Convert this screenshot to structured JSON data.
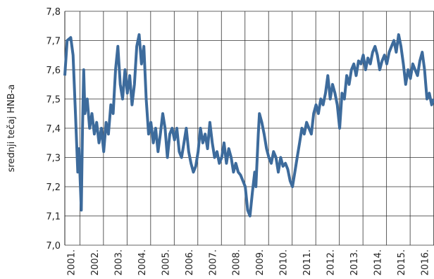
{
  "chart_data": {
    "type": "line",
    "y_label": "srednji tečaj HNB-a",
    "xlim": [
      2000.75,
      2016.4
    ],
    "xticks": [
      {
        "value": 2001,
        "label": "2001."
      },
      {
        "value": 2002,
        "label": "2002."
      },
      {
        "value": 2003,
        "label": "2003."
      },
      {
        "value": 2004,
        "label": "2004."
      },
      {
        "value": 2005,
        "label": "2005."
      },
      {
        "value": 2006,
        "label": "2006."
      },
      {
        "value": 2007,
        "label": "2007."
      },
      {
        "value": 2008,
        "label": "2008."
      },
      {
        "value": 2009,
        "label": "2009."
      },
      {
        "value": 2010,
        "label": "2010."
      },
      {
        "value": 2011,
        "label": "2011."
      },
      {
        "value": 2012,
        "label": "2012."
      },
      {
        "value": 2013,
        "label": "2013."
      },
      {
        "value": 2014,
        "label": "2014."
      },
      {
        "value": 2015,
        "label": "2015."
      },
      {
        "value": 2016,
        "label": "2016."
      }
    ],
    "ylim": [
      7.0,
      7.8
    ],
    "yticks": [
      {
        "value": 7.0,
        "label": "7,0"
      },
      {
        "value": 7.1,
        "label": "7,1"
      },
      {
        "value": 7.2,
        "label": "7,2"
      },
      {
        "value": 7.3,
        "label": "7,3"
      },
      {
        "value": 7.4,
        "label": "7,4"
      },
      {
        "value": 7.5,
        "label": "7,5"
      },
      {
        "value": 7.6,
        "label": "7,6"
      },
      {
        "value": 7.7,
        "label": "7,7"
      },
      {
        "value": 7.8,
        "label": "7,8"
      }
    ],
    "grid": true,
    "color": "#3d6b9c",
    "x": [
      2000.75,
      2000.85,
      2001.0,
      2001.1,
      2001.2,
      2001.3,
      2001.35,
      2001.45,
      2001.5,
      2001.55,
      2001.6,
      2001.7,
      2001.8,
      2001.9,
      2002.0,
      2002.1,
      2002.2,
      2002.3,
      2002.4,
      2002.5,
      2002.6,
      2002.7,
      2002.8,
      2002.9,
      2003.0,
      2003.1,
      2003.2,
      2003.3,
      2003.4,
      2003.5,
      2003.6,
      2003.7,
      2003.8,
      2003.9,
      2004.0,
      2004.1,
      2004.2,
      2004.3,
      2004.4,
      2004.5,
      2004.6,
      2004.7,
      2004.8,
      2004.9,
      2005.0,
      2005.1,
      2005.2,
      2005.3,
      2005.4,
      2005.5,
      2005.6,
      2005.7,
      2005.8,
      2005.9,
      2006.0,
      2006.1,
      2006.2,
      2006.3,
      2006.4,
      2006.5,
      2006.6,
      2006.7,
      2006.8,
      2006.9,
      2007.0,
      2007.1,
      2007.2,
      2007.3,
      2007.4,
      2007.5,
      2007.6,
      2007.7,
      2007.8,
      2007.9,
      2008.0,
      2008.1,
      2008.2,
      2008.3,
      2008.4,
      2008.5,
      2008.6,
      2008.7,
      2008.8,
      2008.85,
      2008.95,
      2009.0,
      2009.1,
      2009.2,
      2009.3,
      2009.4,
      2009.5,
      2009.6,
      2009.7,
      2009.8,
      2009.9,
      2010.0,
      2010.1,
      2010.2,
      2010.3,
      2010.4,
      2010.5,
      2010.6,
      2010.7,
      2010.8,
      2010.9,
      2011.0,
      2011.1,
      2011.2,
      2011.3,
      2011.4,
      2011.5,
      2011.6,
      2011.7,
      2011.8,
      2011.9,
      2012.0,
      2012.1,
      2012.2,
      2012.3,
      2012.4,
      2012.5,
      2012.6,
      2012.7,
      2012.8,
      2012.9,
      2013.0,
      2013.1,
      2013.2,
      2013.3,
      2013.4,
      2013.5,
      2013.6,
      2013.7,
      2013.8,
      2013.9,
      2014.0,
      2014.1,
      2014.2,
      2014.3,
      2014.4,
      2014.5,
      2014.6,
      2014.7,
      2014.8,
      2014.9,
      2015.0,
      2015.1,
      2015.2,
      2015.3,
      2015.4,
      2015.5,
      2015.6,
      2015.7,
      2015.8,
      2015.9,
      2016.0,
      2016.1,
      2016.2,
      2016.3,
      2016.4
    ],
    "values": [
      7.58,
      7.7,
      7.71,
      7.65,
      7.45,
      7.25,
      7.33,
      7.12,
      7.4,
      7.6,
      7.45,
      7.5,
      7.4,
      7.45,
      7.38,
      7.42,
      7.35,
      7.4,
      7.32,
      7.42,
      7.38,
      7.48,
      7.45,
      7.6,
      7.68,
      7.55,
      7.5,
      7.6,
      7.52,
      7.58,
      7.48,
      7.55,
      7.68,
      7.72,
      7.62,
      7.68,
      7.5,
      7.38,
      7.42,
      7.35,
      7.4,
      7.32,
      7.38,
      7.45,
      7.4,
      7.3,
      7.38,
      7.4,
      7.36,
      7.4,
      7.32,
      7.3,
      7.35,
      7.4,
      7.32,
      7.28,
      7.25,
      7.27,
      7.32,
      7.4,
      7.35,
      7.38,
      7.33,
      7.42,
      7.35,
      7.3,
      7.32,
      7.28,
      7.3,
      7.35,
      7.28,
      7.33,
      7.3,
      7.25,
      7.28,
      7.25,
      7.24,
      7.22,
      7.2,
      7.12,
      7.1,
      7.18,
      7.25,
      7.2,
      7.38,
      7.45,
      7.42,
      7.38,
      7.33,
      7.3,
      7.28,
      7.32,
      7.3,
      7.25,
      7.3,
      7.27,
      7.28,
      7.26,
      7.22,
      7.2,
      7.25,
      7.3,
      7.35,
      7.4,
      7.38,
      7.42,
      7.4,
      7.38,
      7.45,
      7.48,
      7.45,
      7.5,
      7.48,
      7.52,
      7.58,
      7.5,
      7.55,
      7.52,
      7.48,
      7.4,
      7.52,
      7.5,
      7.58,
      7.55,
      7.6,
      7.62,
      7.58,
      7.63,
      7.62,
      7.65,
      7.6,
      7.64,
      7.62,
      7.66,
      7.68,
      7.65,
      7.6,
      7.63,
      7.65,
      7.62,
      7.66,
      7.68,
      7.7,
      7.66,
      7.72,
      7.68,
      7.62,
      7.55,
      7.6,
      7.57,
      7.62,
      7.6,
      7.58,
      7.63,
      7.66,
      7.6,
      7.5,
      7.52,
      7.48,
      7.5
    ]
  }
}
